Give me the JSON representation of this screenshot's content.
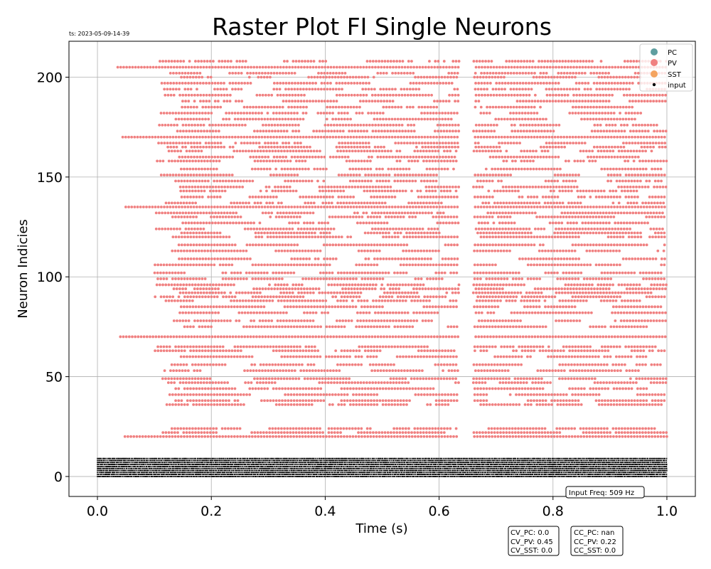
{
  "chart_data": {
    "type": "scatter",
    "title": "Raster Plot FI Single Neurons",
    "timestamp": "ts: 2023-05-09-14-39",
    "xlabel": "Time (s)",
    "ylabel": "Neuron Indicies",
    "xlim": [
      -0.05,
      1.05
    ],
    "ylim": [
      -10,
      218
    ],
    "x_ticks": [
      0.0,
      0.2,
      0.4,
      0.6,
      0.8,
      1.0
    ],
    "x_tick_labels": [
      "0.0",
      "0.2",
      "0.4",
      "0.6",
      "0.8",
      "1.0"
    ],
    "y_ticks": [
      0,
      50,
      100,
      150,
      200
    ],
    "y_tick_labels": [
      "0",
      "50",
      "100",
      "150",
      "200"
    ],
    "grid": true,
    "legend_position": "top-right",
    "legend": [
      {
        "label": "PC",
        "color": "#5f9ea0"
      },
      {
        "label": "PV",
        "color": "#f08080"
      },
      {
        "label": "SST",
        "color": "#f4a460"
      },
      {
        "label": "input",
        "color": "#000000"
      }
    ],
    "series": [
      {
        "name": "PV",
        "color": "#f08080",
        "time_range": [
          0.02,
          1.0
        ],
        "neuron_rows": [
          20,
          22,
          24,
          36,
          38,
          41,
          44,
          47,
          49,
          53,
          56,
          60,
          63,
          65,
          70,
          75,
          78,
          82,
          85,
          88,
          90,
          92,
          94,
          96,
          99,
          102,
          106,
          109,
          113,
          116,
          120,
          122,
          124,
          127,
          130,
          132,
          135,
          137,
          140,
          143,
          145,
          148,
          151,
          154,
          158,
          160,
          163,
          165,
          167,
          170,
          173,
          176,
          179,
          182,
          185,
          188,
          191,
          194,
          197,
          200,
          202,
          205,
          208
        ],
        "continuous_rows": [
          20,
          70,
          135,
          170,
          205
        ],
        "silent_interval": [
          0.635,
          0.66
        ]
      },
      {
        "name": "input",
        "color": "#000000",
        "time_range": [
          0.0,
          1.0
        ],
        "neuron_rows_range": [
          0,
          9
        ]
      }
    ],
    "annotations": {
      "input_freq": "Input Freq: 509 Hz",
      "cv_box": [
        "CV_PC: 0.0",
        "CV_PV: 0.45",
        "CV_SST: 0.0"
      ],
      "cc_box": [
        "CC_PC: nan",
        "CC_PV: 0.22",
        "CC_SST: 0.0"
      ]
    }
  }
}
